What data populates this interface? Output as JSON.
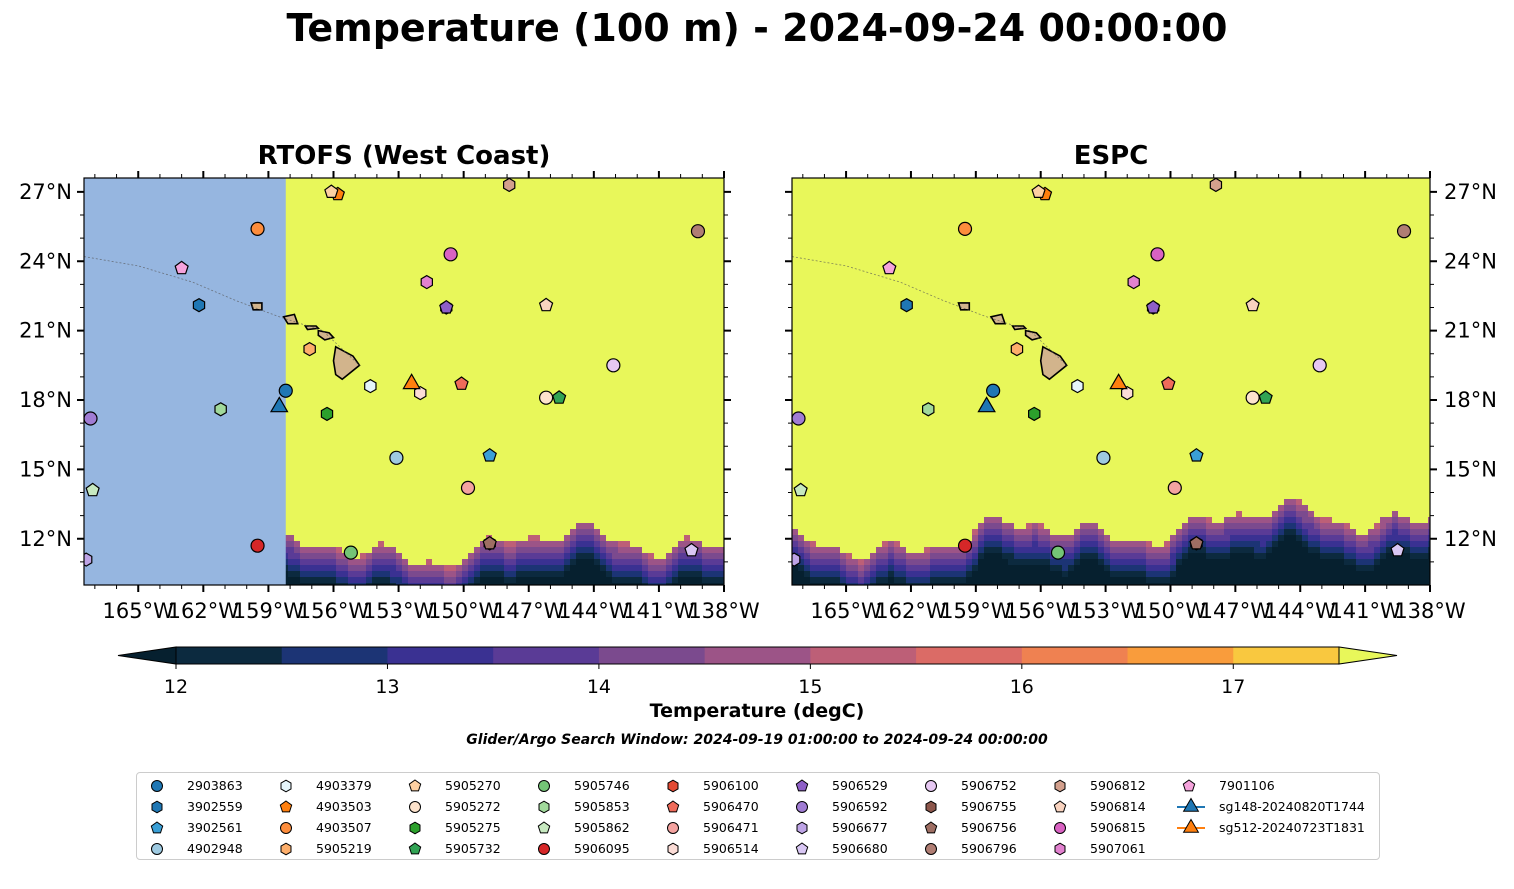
{
  "title": "Temperature (100 m) - 2024-09-24 00:00:00",
  "panels": [
    {
      "title": "RTOFS (West Coast)"
    },
    {
      "title": "ESPC"
    }
  ],
  "colorbar": {
    "label": "Temperature (degC)",
    "min": 12,
    "max": 17.5,
    "ticks": [
      "12",
      "13",
      "14",
      "15",
      "16",
      "17"
    ],
    "colors": [
      "#0c2a3f",
      "#1c3475",
      "#3a3192",
      "#5a3b96",
      "#7b4a8e",
      "#9c5487",
      "#bd5f77",
      "#db6b66",
      "#ef8151",
      "#f99c3c",
      "#f9c83f"
    ],
    "under_color": "#06202f",
    "over_color": "#e8f75a",
    "no_data_color": "#96b6e0"
  },
  "search_window": "Glider/Argo Search Window: 2024-09-19 01:00:00 to 2024-09-24 00:00:00",
  "chart_data": {
    "type": "map",
    "lon_range": [
      -167.5,
      -138
    ],
    "lat_range": [
      10,
      27.6
    ],
    "xticks": [
      -165,
      -162,
      -159,
      -156,
      -153,
      -150,
      -147,
      -144,
      -141,
      -138
    ],
    "xtick_labels": [
      "165°W",
      "162°W",
      "159°W",
      "156°W",
      "153°W",
      "150°W",
      "147°W",
      "144°W",
      "141°W",
      "138°W"
    ],
    "yticks": [
      12,
      15,
      18,
      21,
      24,
      27
    ],
    "ytick_labels": [
      "12°N",
      "15°N",
      "18°N",
      "21°N",
      "24°N",
      "27°N"
    ],
    "floats": [
      {
        "id": "2903863",
        "marker": "circle",
        "color": "#1f77b4",
        "lon": -158.2,
        "lat": 18.4
      },
      {
        "id": "3902559",
        "marker": "hexagon",
        "color": "#1f77b4",
        "lon": -162.2,
        "lat": 22.1
      },
      {
        "id": "3902561",
        "marker": "pentagon",
        "color": "#3a9fd6",
        "lon": -148.8,
        "lat": 15.6
      },
      {
        "id": "4902948",
        "marker": "circle",
        "color": "#9ecae1",
        "lon": -153.1,
        "lat": 15.5
      },
      {
        "id": "4903379",
        "marker": "hexagon",
        "color": "#e5f5fb",
        "lon": -154.3,
        "lat": 18.6
      },
      {
        "id": "4903503",
        "marker": "pentagon",
        "color": "#ff7f0e",
        "lon": -155.8,
        "lat": 26.9
      },
      {
        "id": "4903507",
        "marker": "circle",
        "color": "#fd8d3c",
        "lon": -159.5,
        "lat": 25.4
      },
      {
        "id": "5905219",
        "marker": "hexagon",
        "color": "#fdae6b",
        "lon": -157.1,
        "lat": 20.2
      },
      {
        "id": "5905270",
        "marker": "pentagon",
        "color": "#fdd0a2",
        "lon": -156.1,
        "lat": 27.0
      },
      {
        "id": "5905272",
        "marker": "circle",
        "color": "#fde3cc",
        "lon": -146.2,
        "lat": 18.1
      },
      {
        "id": "5905275",
        "marker": "hexagon",
        "color": "#2ca02c",
        "lon": -156.3,
        "lat": 17.4
      },
      {
        "id": "5905732",
        "marker": "pentagon",
        "color": "#31a354",
        "lon": -145.6,
        "lat": 18.1
      },
      {
        "id": "5905746",
        "marker": "circle",
        "color": "#74c476",
        "lon": -155.2,
        "lat": 11.4
      },
      {
        "id": "5905853",
        "marker": "hexagon",
        "color": "#a1d99b",
        "lon": -161.2,
        "lat": 17.6
      },
      {
        "id": "5905862",
        "marker": "pentagon",
        "color": "#c7e9c0",
        "lon": -167.1,
        "lat": 14.1
      },
      {
        "id": "5906095",
        "marker": "circle",
        "color": "#d62728",
        "lon": -159.5,
        "lat": 11.7
      },
      {
        "id": "5906100",
        "marker": "hexagon",
        "color": "#e34a33",
        "lon": -150.8,
        "lat": 22.0
      },
      {
        "id": "5906470",
        "marker": "pentagon",
        "color": "#ef6b5a",
        "lon": -150.1,
        "lat": 18.7
      },
      {
        "id": "5906471",
        "marker": "circle",
        "color": "#f4a3a0",
        "lon": -149.8,
        "lat": 14.2
      },
      {
        "id": "5906514",
        "marker": "hexagon",
        "color": "#fbdcd6",
        "lon": -152.0,
        "lat": 18.3
      },
      {
        "id": "5906529",
        "marker": "pentagon",
        "color": "#8e5fc7",
        "lon": -150.8,
        "lat": 22.0
      },
      {
        "id": "5906592",
        "marker": "circle",
        "color": "#a07cd3",
        "lon": -167.2,
        "lat": 17.2
      },
      {
        "id": "5906677",
        "marker": "hexagon",
        "color": "#bea4e6",
        "lon": -167.4,
        "lat": 11.1
      },
      {
        "id": "5906680",
        "marker": "pentagon",
        "color": "#d9c7f4",
        "lon": -139.5,
        "lat": 11.5
      },
      {
        "id": "5906752",
        "marker": "circle",
        "color": "#e6c8f2",
        "lon": -143.1,
        "lat": 19.5
      },
      {
        "id": "5906755",
        "marker": "hexagon",
        "color": "#8c564b",
        "lon": -148.8,
        "lat": 11.8
      },
      {
        "id": "5906756",
        "marker": "pentagon",
        "color": "#9e6e63",
        "lon": -148.8,
        "lat": 11.8
      },
      {
        "id": "5906796",
        "marker": "circle",
        "color": "#b07e74",
        "lon": -139.2,
        "lat": 25.3
      },
      {
        "id": "5906812",
        "marker": "hexagon",
        "color": "#d3a08d",
        "lon": -147.9,
        "lat": 27.3
      },
      {
        "id": "5906814",
        "marker": "pentagon",
        "color": "#f9d3bf",
        "lon": -146.2,
        "lat": 22.1
      },
      {
        "id": "5906815",
        "marker": "circle",
        "color": "#d962c2",
        "lon": -150.6,
        "lat": 24.3
      },
      {
        "id": "5907061",
        "marker": "hexagon",
        "color": "#e281cf",
        "lon": -151.7,
        "lat": 23.1
      },
      {
        "id": "7901106",
        "marker": "pentagon",
        "color": "#f5a3dc",
        "lon": -163.0,
        "lat": 23.7
      }
    ],
    "gliders": [
      {
        "id": "sg148-20240820T1744",
        "marker": "triangle",
        "color": "#1f77b4",
        "lon": -158.5,
        "lat": 17.7
      },
      {
        "id": "sg512-20240723T1831",
        "marker": "triangle",
        "color": "#ff7f0e",
        "lon": -152.4,
        "lat": 18.7
      }
    ]
  }
}
